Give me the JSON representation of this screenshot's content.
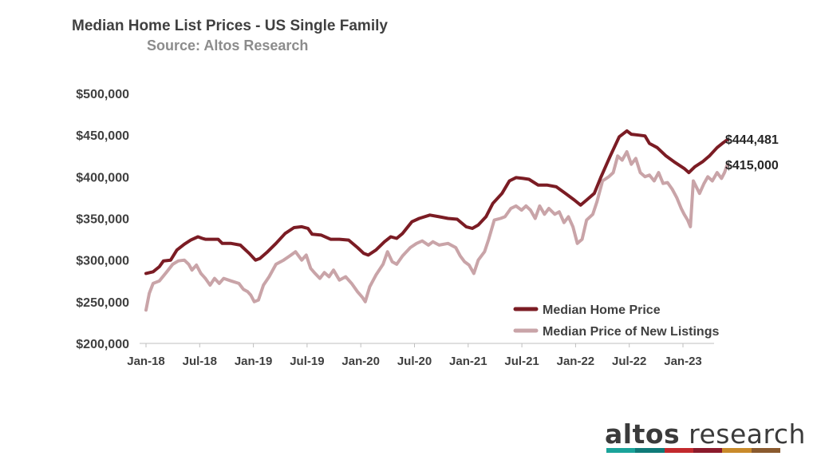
{
  "header": {
    "title": "Median Home List Prices - US Single Family",
    "subtitle": "Source: Altos Research"
  },
  "logo": {
    "word1": "altos",
    "word2": " research",
    "bar_colors": [
      "#1aa39a",
      "#0f7a78",
      "#c2292d",
      "#8b1a2b",
      "#c98a2a",
      "#8a5a2e"
    ]
  },
  "chart_data": {
    "type": "line",
    "x_ticks": [
      "Jan-18",
      "Jul-18",
      "Jan-19",
      "Jul-19",
      "Jan-20",
      "Jul-20",
      "Jan-21",
      "Jul-21",
      "Jan-22",
      "Jul-22",
      "Jan-23"
    ],
    "y_ticks": [
      "$500,000",
      "$450,000",
      "$400,000",
      "$350,000",
      "$300,000",
      "$250,000",
      "$200,000"
    ],
    "ylim": [
      200000,
      500000
    ],
    "x_start": "2018-01-01",
    "x_end": "2023-05-15",
    "grid": false,
    "legend_position": "bottom-right",
    "end_labels": [
      "$444,481",
      "$415,000"
    ],
    "series": [
      {
        "name": "Median Home Price",
        "color": "#7b1c24",
        "points": [
          [
            "2018-01-01",
            284000
          ],
          [
            "2018-01-25",
            286000
          ],
          [
            "2018-02-15",
            292000
          ],
          [
            "2018-03-01",
            299000
          ],
          [
            "2018-03-25",
            300000
          ],
          [
            "2018-04-15",
            312000
          ],
          [
            "2018-05-10",
            319000
          ],
          [
            "2018-06-01",
            324000
          ],
          [
            "2018-06-25",
            328000
          ],
          [
            "2018-07-10",
            326000
          ],
          [
            "2018-07-20",
            325000
          ],
          [
            "2018-09-01",
            325000
          ],
          [
            "2018-09-15",
            320000
          ],
          [
            "2018-10-15",
            320000
          ],
          [
            "2018-11-15",
            318000
          ],
          [
            "2018-12-15",
            308000
          ],
          [
            "2019-01-05",
            300000
          ],
          [
            "2019-01-20",
            302000
          ],
          [
            "2019-02-15",
            310000
          ],
          [
            "2019-03-15",
            320000
          ],
          [
            "2019-04-15",
            332000
          ],
          [
            "2019-05-15",
            339000
          ],
          [
            "2019-06-10",
            340000
          ],
          [
            "2019-07-01",
            338000
          ],
          [
            "2019-07-15",
            331000
          ],
          [
            "2019-08-15",
            330000
          ],
          [
            "2019-09-15",
            325000
          ],
          [
            "2019-10-15",
            325000
          ],
          [
            "2019-11-15",
            324000
          ],
          [
            "2019-12-15",
            315000
          ],
          [
            "2020-01-05",
            308000
          ],
          [
            "2020-01-20",
            306000
          ],
          [
            "2020-02-15",
            312000
          ],
          [
            "2020-03-15",
            322000
          ],
          [
            "2020-04-05",
            328000
          ],
          [
            "2020-04-25",
            326000
          ],
          [
            "2020-05-15",
            332000
          ],
          [
            "2020-06-15",
            346000
          ],
          [
            "2020-07-10",
            350000
          ],
          [
            "2020-08-15",
            354000
          ],
          [
            "2020-09-15",
            352000
          ],
          [
            "2020-10-15",
            350000
          ],
          [
            "2020-11-15",
            349000
          ],
          [
            "2020-12-15",
            340000
          ],
          [
            "2021-01-05",
            338000
          ],
          [
            "2021-01-25",
            342000
          ],
          [
            "2021-02-20",
            352000
          ],
          [
            "2021-03-15",
            368000
          ],
          [
            "2021-04-15",
            380000
          ],
          [
            "2021-05-10",
            395000
          ],
          [
            "2021-06-01",
            399000
          ],
          [
            "2021-06-25",
            398000
          ],
          [
            "2021-07-15",
            397000
          ],
          [
            "2021-08-15",
            390000
          ],
          [
            "2021-09-15",
            390000
          ],
          [
            "2021-10-15",
            388000
          ],
          [
            "2021-11-15",
            380000
          ],
          [
            "2021-12-15",
            372000
          ],
          [
            "2022-01-05",
            366000
          ],
          [
            "2022-01-25",
            372000
          ],
          [
            "2022-02-20",
            380000
          ],
          [
            "2022-03-15",
            400000
          ],
          [
            "2022-04-15",
            425000
          ],
          [
            "2022-05-15",
            448000
          ],
          [
            "2022-06-10",
            455000
          ],
          [
            "2022-06-25",
            451000
          ],
          [
            "2022-07-20",
            450000
          ],
          [
            "2022-08-10",
            449000
          ],
          [
            "2022-08-25",
            440000
          ],
          [
            "2022-09-20",
            435000
          ],
          [
            "2022-10-20",
            425000
          ],
          [
            "2022-11-20",
            417000
          ],
          [
            "2022-12-20",
            410000
          ],
          [
            "2023-01-05",
            405000
          ],
          [
            "2023-01-25",
            412000
          ],
          [
            "2023-02-20",
            418000
          ],
          [
            "2023-03-15",
            425000
          ],
          [
            "2023-04-10",
            435000
          ],
          [
            "2023-05-01",
            441000
          ],
          [
            "2023-05-15",
            444481
          ]
        ]
      },
      {
        "name": "Median Price of New Listings",
        "color": "#c9a4a8",
        "points": [
          [
            "2018-01-01",
            240000
          ],
          [
            "2018-01-12",
            260000
          ],
          [
            "2018-01-25",
            272000
          ],
          [
            "2018-02-15",
            275000
          ],
          [
            "2018-03-10",
            285000
          ],
          [
            "2018-04-01",
            295000
          ],
          [
            "2018-04-20",
            299000
          ],
          [
            "2018-05-10",
            300000
          ],
          [
            "2018-05-25",
            295000
          ],
          [
            "2018-06-05",
            288000
          ],
          [
            "2018-06-20",
            294000
          ],
          [
            "2018-07-05",
            284000
          ],
          [
            "2018-07-20",
            278000
          ],
          [
            "2018-08-05",
            270000
          ],
          [
            "2018-08-20",
            278000
          ],
          [
            "2018-09-05",
            272000
          ],
          [
            "2018-09-20",
            278000
          ],
          [
            "2018-10-15",
            275000
          ],
          [
            "2018-11-10",
            272000
          ],
          [
            "2018-11-25",
            265000
          ],
          [
            "2018-12-10",
            262000
          ],
          [
            "2018-12-20",
            258000
          ],
          [
            "2019-01-01",
            250000
          ],
          [
            "2019-01-15",
            252000
          ],
          [
            "2019-02-01",
            270000
          ],
          [
            "2019-02-20",
            280000
          ],
          [
            "2019-03-15",
            295000
          ],
          [
            "2019-04-10",
            300000
          ],
          [
            "2019-05-01",
            305000
          ],
          [
            "2019-05-20",
            310000
          ],
          [
            "2019-06-10",
            300000
          ],
          [
            "2019-06-25",
            306000
          ],
          [
            "2019-07-10",
            290000
          ],
          [
            "2019-07-25",
            284000
          ],
          [
            "2019-08-10",
            278000
          ],
          [
            "2019-08-25",
            285000
          ],
          [
            "2019-09-10",
            280000
          ],
          [
            "2019-09-25",
            288000
          ],
          [
            "2019-10-15",
            276000
          ],
          [
            "2019-11-05",
            280000
          ],
          [
            "2019-11-25",
            272000
          ],
          [
            "2019-12-15",
            262000
          ],
          [
            "2020-01-01",
            255000
          ],
          [
            "2020-01-10",
            250000
          ],
          [
            "2020-01-25",
            268000
          ],
          [
            "2020-02-15",
            282000
          ],
          [
            "2020-03-10",
            295000
          ],
          [
            "2020-03-25",
            310000
          ],
          [
            "2020-04-10",
            298000
          ],
          [
            "2020-04-25",
            295000
          ],
          [
            "2020-05-15",
            305000
          ],
          [
            "2020-06-10",
            315000
          ],
          [
            "2020-07-01",
            320000
          ],
          [
            "2020-07-20",
            323000
          ],
          [
            "2020-08-10",
            318000
          ],
          [
            "2020-08-25",
            322000
          ],
          [
            "2020-09-15",
            318000
          ],
          [
            "2020-10-15",
            320000
          ],
          [
            "2020-11-10",
            315000
          ],
          [
            "2020-11-25",
            305000
          ],
          [
            "2020-12-10",
            298000
          ],
          [
            "2020-12-25",
            294000
          ],
          [
            "2021-01-10",
            284000
          ],
          [
            "2021-01-25",
            300000
          ],
          [
            "2021-02-15",
            310000
          ],
          [
            "2021-03-01",
            325000
          ],
          [
            "2021-03-20",
            348000
          ],
          [
            "2021-04-10",
            350000
          ],
          [
            "2021-04-25",
            352000
          ],
          [
            "2021-05-15",
            362000
          ],
          [
            "2021-06-01",
            365000
          ],
          [
            "2021-06-20",
            360000
          ],
          [
            "2021-07-05",
            365000
          ],
          [
            "2021-07-20",
            360000
          ],
          [
            "2021-08-05",
            350000
          ],
          [
            "2021-08-20",
            365000
          ],
          [
            "2021-09-05",
            355000
          ],
          [
            "2021-09-20",
            362000
          ],
          [
            "2021-10-10",
            355000
          ],
          [
            "2021-10-25",
            358000
          ],
          [
            "2021-11-10",
            345000
          ],
          [
            "2021-11-25",
            352000
          ],
          [
            "2021-12-10",
            340000
          ],
          [
            "2021-12-25",
            320000
          ],
          [
            "2022-01-10",
            325000
          ],
          [
            "2022-01-25",
            348000
          ],
          [
            "2022-02-15",
            355000
          ],
          [
            "2022-03-01",
            370000
          ],
          [
            "2022-03-20",
            395000
          ],
          [
            "2022-04-10",
            400000
          ],
          [
            "2022-04-25",
            405000
          ],
          [
            "2022-05-10",
            425000
          ],
          [
            "2022-05-25",
            420000
          ],
          [
            "2022-06-10",
            430000
          ],
          [
            "2022-06-25",
            415000
          ],
          [
            "2022-07-10",
            422000
          ],
          [
            "2022-07-25",
            405000
          ],
          [
            "2022-08-10",
            400000
          ],
          [
            "2022-08-25",
            402000
          ],
          [
            "2022-09-10",
            395000
          ],
          [
            "2022-09-25",
            405000
          ],
          [
            "2022-10-10",
            392000
          ],
          [
            "2022-10-25",
            393000
          ],
          [
            "2022-11-10",
            385000
          ],
          [
            "2022-11-25",
            375000
          ],
          [
            "2022-12-10",
            362000
          ],
          [
            "2022-12-20",
            355000
          ],
          [
            "2023-01-01",
            348000
          ],
          [
            "2023-01-10",
            340000
          ],
          [
            "2023-01-20",
            395000
          ],
          [
            "2023-02-10",
            380000
          ],
          [
            "2023-02-25",
            392000
          ],
          [
            "2023-03-10",
            400000
          ],
          [
            "2023-03-25",
            395000
          ],
          [
            "2023-04-10",
            405000
          ],
          [
            "2023-04-25",
            398000
          ],
          [
            "2023-05-05",
            405000
          ],
          [
            "2023-05-15",
            415000
          ]
        ]
      }
    ]
  }
}
